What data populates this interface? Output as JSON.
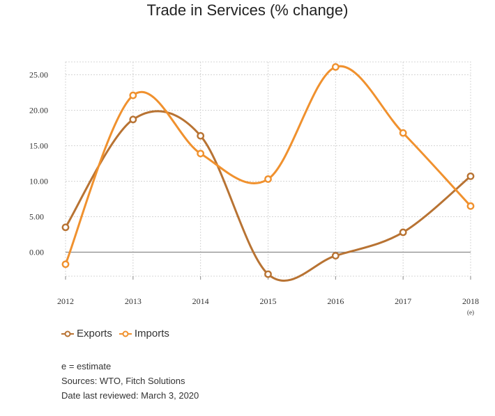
{
  "chart_data": {
    "type": "line",
    "title": "Trade in Services (% change)",
    "categories": [
      "2012",
      "2013",
      "2014",
      "2015",
      "2016",
      "2017",
      "2018"
    ],
    "category_sublabels": [
      "",
      "",
      "",
      "",
      "",
      "",
      "(e)"
    ],
    "y_ticks": [
      "25.00",
      "20.00",
      "15.00",
      "10.00",
      "5.00",
      "0.00"
    ],
    "ylim": [
      -3.3,
      26.5
    ],
    "grid": true,
    "legend_position": "bottom-left",
    "series": [
      {
        "name": "Exports",
        "color": "#b87333",
        "values": [
          3.5,
          18.7,
          16.4,
          -3.1,
          -0.5,
          2.8,
          10.7
        ]
      },
      {
        "name": "Imports",
        "color": "#f0912e",
        "values": [
          -1.7,
          22.1,
          13.9,
          10.3,
          26.1,
          16.8,
          6.5
        ]
      }
    ]
  },
  "notes": [
    "e = estimate",
    "Sources: WTO, Fitch Solutions",
    "Date last reviewed: March 3, 2020"
  ]
}
